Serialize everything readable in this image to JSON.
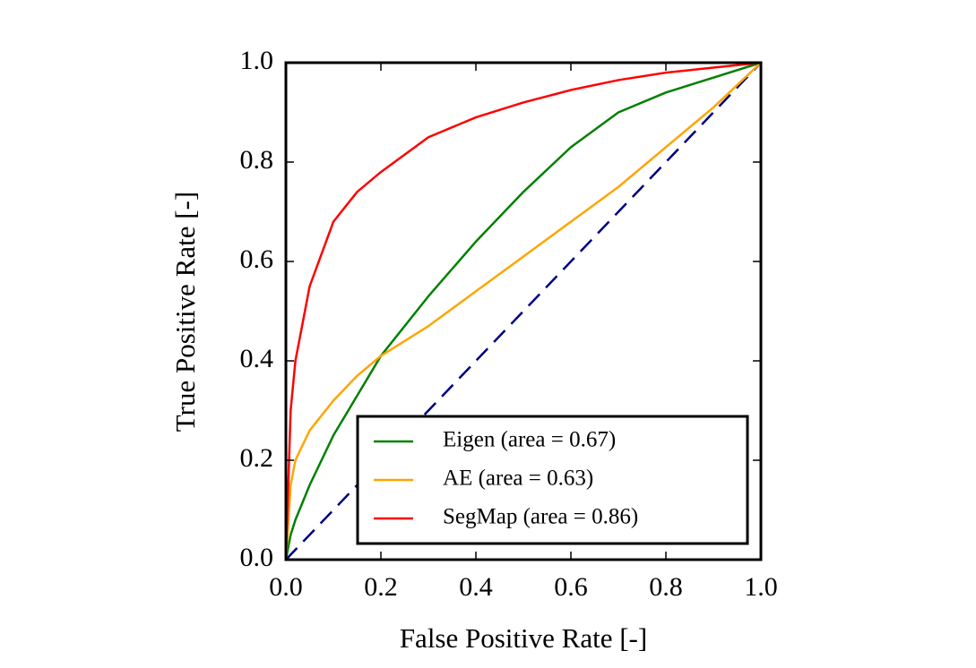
{
  "chart_data": {
    "type": "line",
    "xlabel": "False Positive Rate [-]",
    "ylabel": "True Positive Rate [-]",
    "x": [
      0,
      0.01,
      0.02,
      0.05,
      0.1,
      0.15,
      0.2,
      0.3,
      0.4,
      0.5,
      0.6,
      0.7,
      0.8,
      0.9,
      1.0
    ],
    "series": [
      {
        "name": "Eigen (area = 0.67)",
        "color": "#008000",
        "values": [
          0,
          0.05,
          0.08,
          0.15,
          0.25,
          0.33,
          0.41,
          0.53,
          0.64,
          0.74,
          0.83,
          0.9,
          0.94,
          0.97,
          1.0
        ]
      },
      {
        "name": "AE (area = 0.63)",
        "color": "#ffa500",
        "values": [
          0,
          0.15,
          0.2,
          0.26,
          0.32,
          0.37,
          0.41,
          0.47,
          0.54,
          0.61,
          0.68,
          0.75,
          0.83,
          0.91,
          1.0
        ]
      },
      {
        "name": "SegMap (area = 0.86)",
        "color": "#ff0000",
        "values": [
          0,
          0.3,
          0.4,
          0.55,
          0.68,
          0.74,
          0.78,
          0.85,
          0.89,
          0.92,
          0.945,
          0.965,
          0.98,
          0.99,
          1.0
        ]
      }
    ],
    "reference_line": {
      "x": [
        0,
        1
      ],
      "y": [
        0,
        1
      ],
      "color": "#000080"
    },
    "xlim": [
      0,
      1
    ],
    "ylim": [
      0,
      1
    ],
    "xticks": [
      {
        "value": 0,
        "label": "0.0"
      },
      0.2,
      0.4,
      0.6,
      0.8,
      {
        "value": 1,
        "label": "1.0"
      }
    ],
    "yticks": [
      {
        "value": 0,
        "label": "0.0"
      },
      0.2,
      0.4,
      0.6,
      0.8,
      {
        "value": 1,
        "label": "1.0"
      }
    ],
    "legend": "lower right"
  }
}
